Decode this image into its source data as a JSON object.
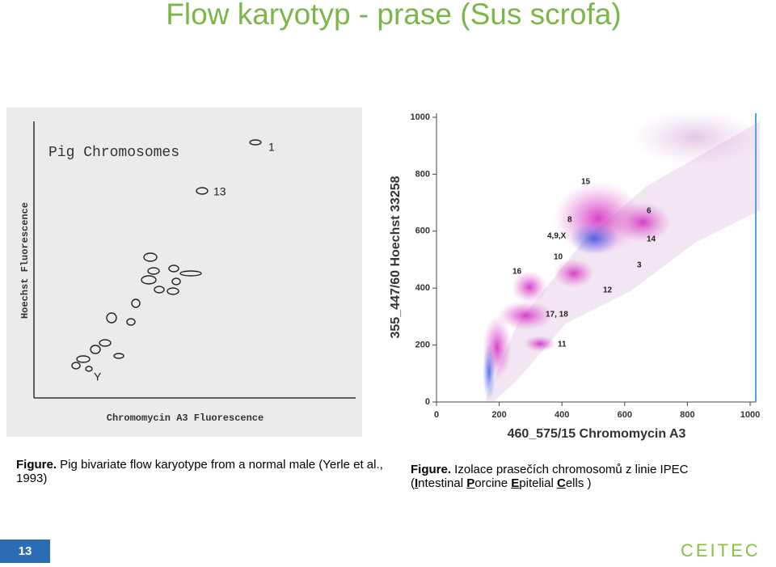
{
  "header": {
    "title": "Flow karyotyp - prase (Sus scrofa)"
  },
  "left_figure": {
    "title": "Pig Chromosomes",
    "x_label": "Chromomycin A3 Fluorescence",
    "y_label": "Hoechst Fluorescence",
    "labels": [
      "1",
      "13",
      "Y"
    ],
    "caption": {
      "lead": "Figure.",
      "text": " Pig bivariate flow karyotype from a normal male (Yerle et al., 1993)"
    }
  },
  "right_figure": {
    "x_label": "460_575/15 Chromomycin A3",
    "y_label": "355_447/60 Hoechst 33258",
    "x_ticks": [
      "0",
      "200",
      "400",
      "600",
      "800",
      "1000"
    ],
    "y_ticks": [
      "0",
      "200",
      "400",
      "600",
      "800",
      "1000"
    ],
    "labels": [
      "15",
      "8",
      "6",
      "4,9,X",
      "14",
      "10",
      "3",
      "16",
      "12",
      "17, 18",
      "11"
    ],
    "caption": {
      "lead": "Figure.",
      "line1": " Izolace prasečích chromosomů z  linie IPEC",
      "line2": [
        "(",
        "I",
        "ntestinal ",
        "P",
        "orcine ",
        "E",
        "pitelial ",
        "C",
        "ells )"
      ]
    }
  },
  "footer": {
    "page_number": "13",
    "logo": "CEITEC"
  }
}
